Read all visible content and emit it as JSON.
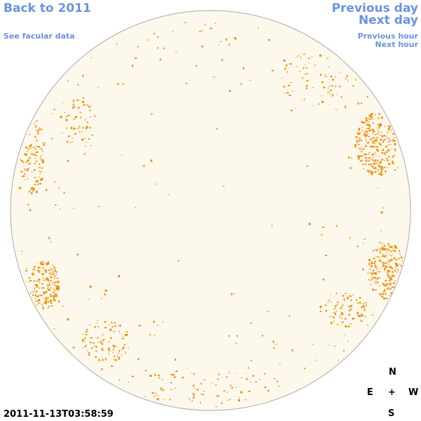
{
  "nav": {
    "back": "Back to 2011",
    "facular": "See facular data",
    "prev_day": "Previous day",
    "next_day": "Next day",
    "prev_hour": "Previous hour",
    "next_hour": "Next hour"
  },
  "timestamp": "2011-11-13T03:58:59",
  "compass": {
    "north": "N",
    "east": "E",
    "center": "+",
    "west": "W",
    "south": "S"
  }
}
